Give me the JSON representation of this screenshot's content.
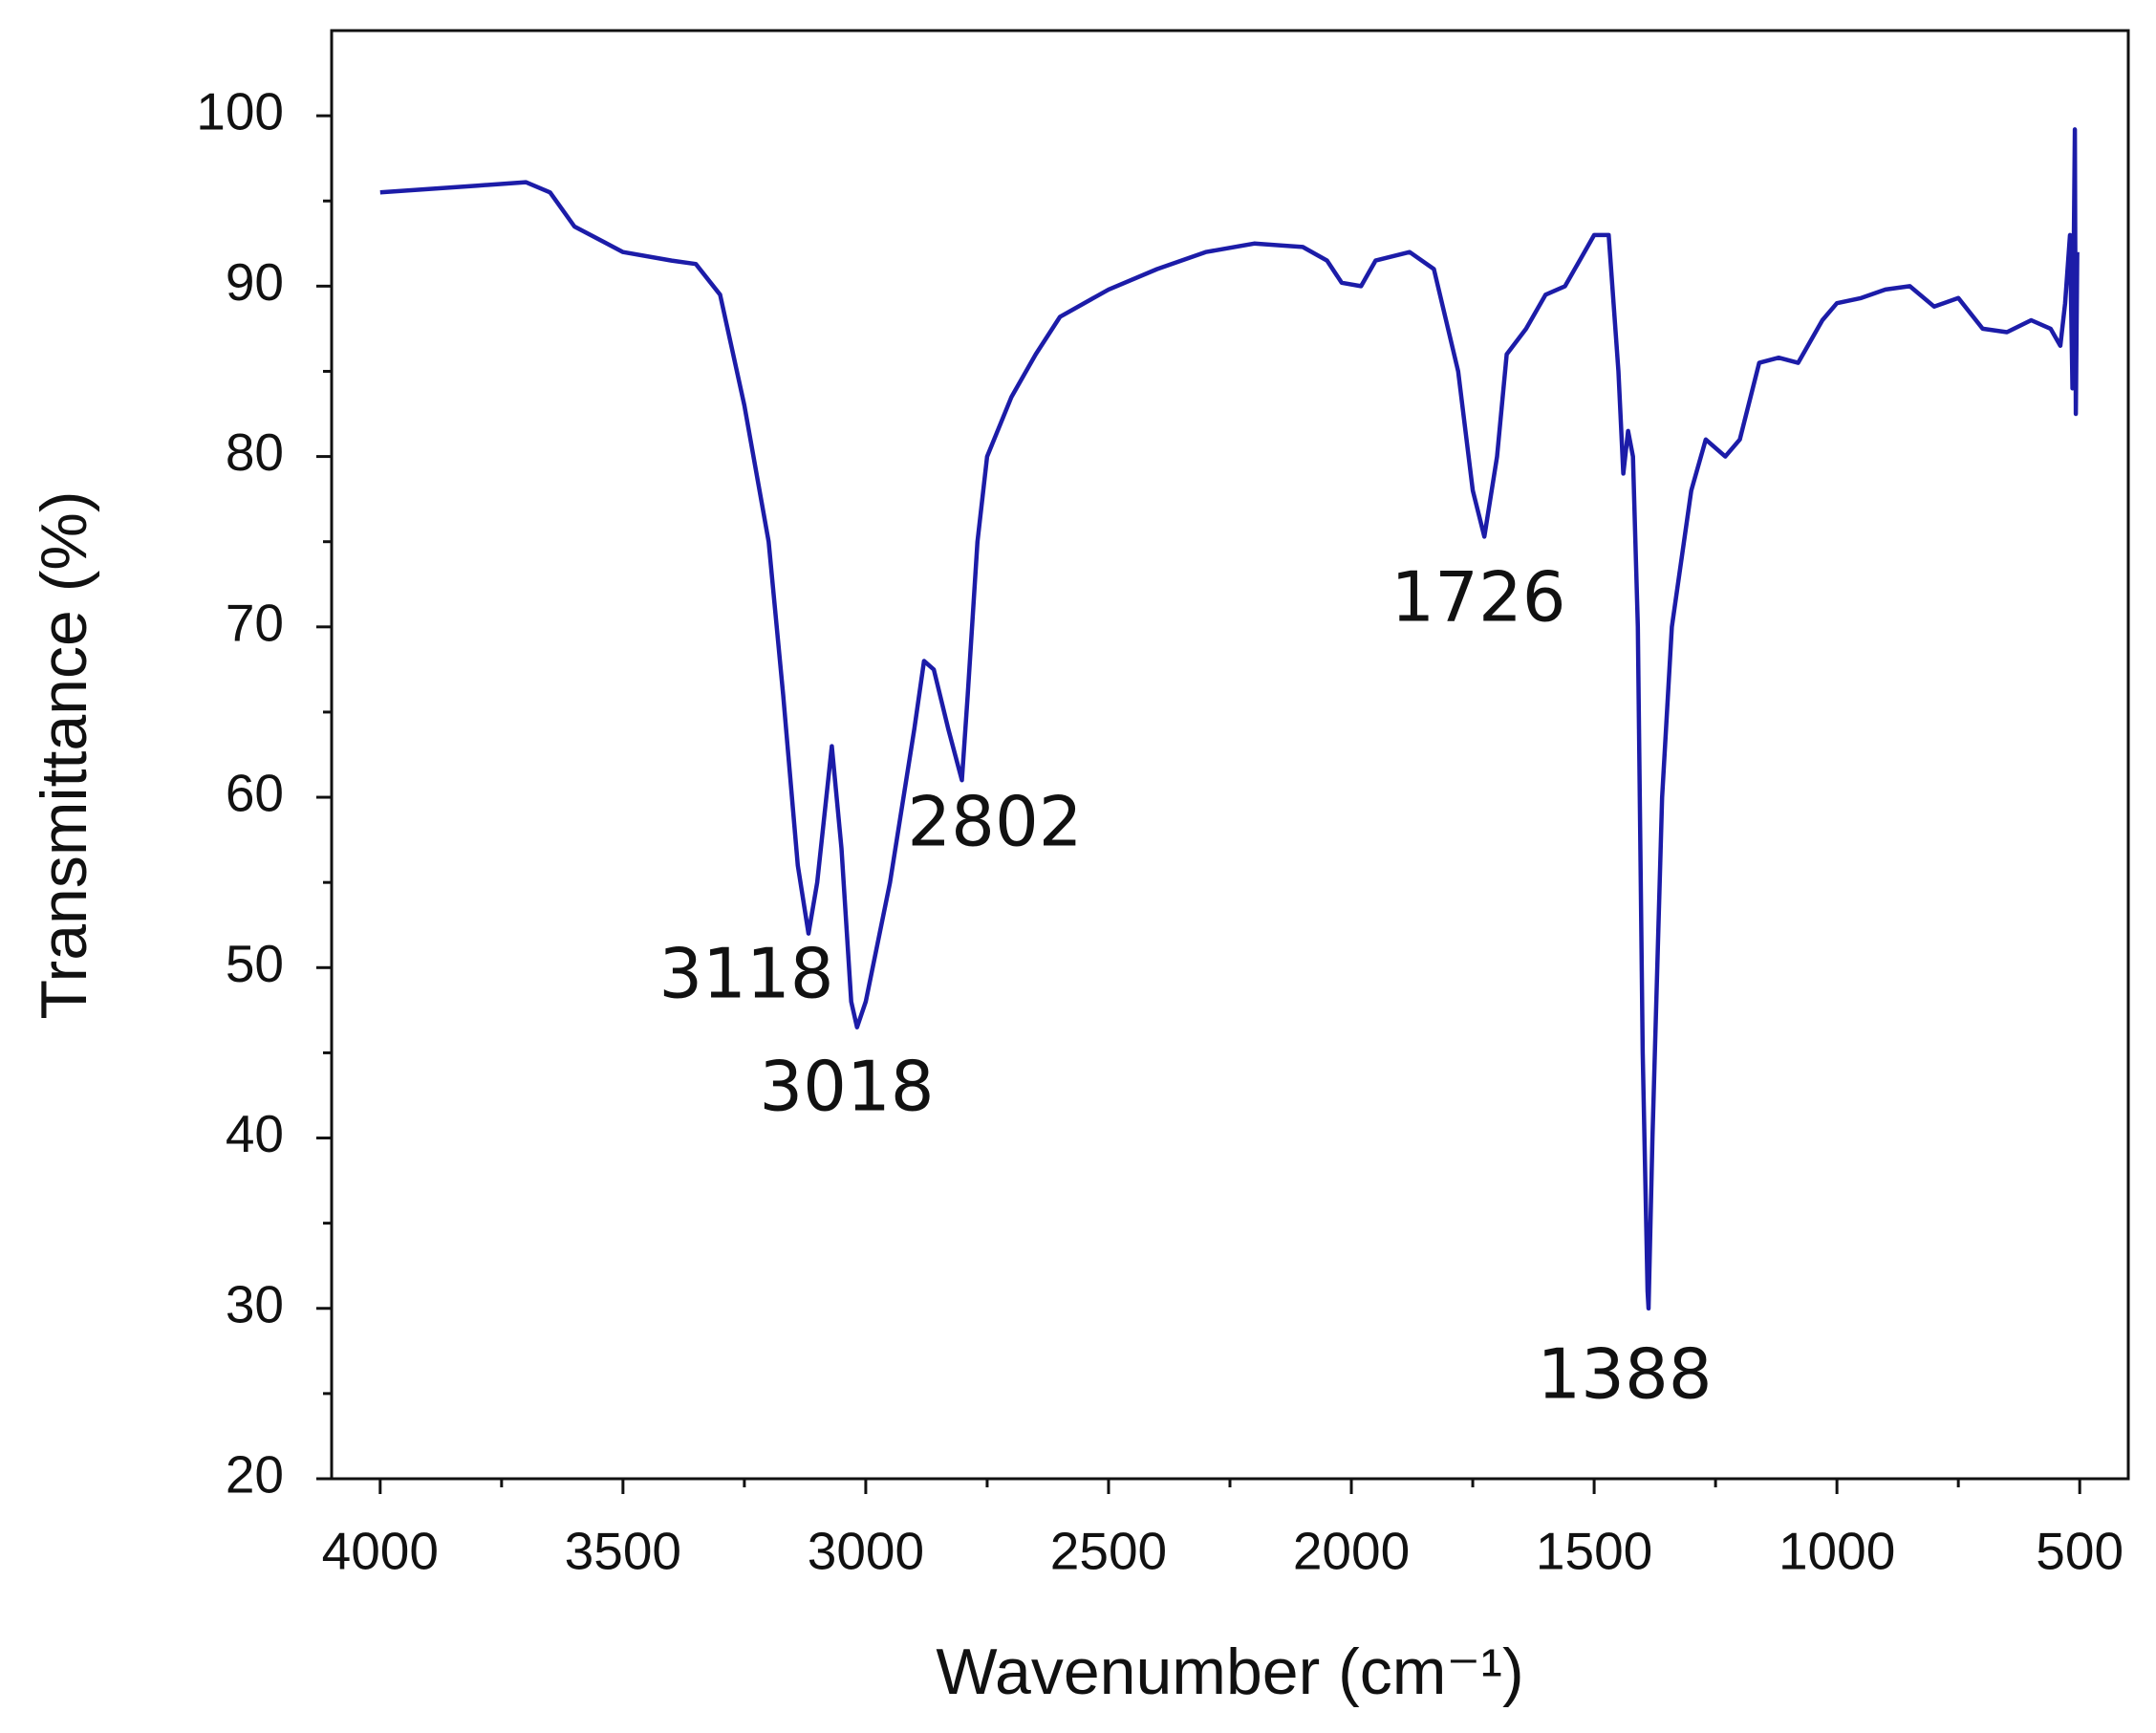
{
  "chart_data": {
    "type": "line",
    "xlabel": "Wavenumber (cm⁻¹)",
    "ylabel": "Transmittance (%)",
    "x": [
      4000,
      3900,
      3800,
      3700,
      3650,
      3600,
      3500,
      3400,
      3350,
      3300,
      3250,
      3200,
      3170,
      3140,
      3118,
      3100,
      3070,
      3050,
      3030,
      3018,
      3000,
      2950,
      2900,
      2880,
      2860,
      2830,
      2802,
      2790,
      2770,
      2750,
      2700,
      2650,
      2600,
      2500,
      2400,
      2300,
      2200,
      2100,
      2050,
      2020,
      1980,
      1950,
      1880,
      1830,
      1780,
      1750,
      1726,
      1700,
      1680,
      1640,
      1600,
      1560,
      1500,
      1470,
      1450,
      1440,
      1430,
      1420,
      1410,
      1400,
      1390,
      1388,
      1380,
      1360,
      1340,
      1300,
      1270,
      1230,
      1200,
      1160,
      1120,
      1080,
      1030,
      1000,
      950,
      900,
      850,
      800,
      750,
      700,
      650,
      600,
      560,
      540,
      530,
      520,
      515,
      510,
      508,
      505
    ],
    "series": [
      {
        "color": "#1c1ca8",
        "values": [
          95.5,
          95.7,
          95.9,
          96.1,
          95.5,
          93.5,
          92,
          91.5,
          91.3,
          89.5,
          83,
          75,
          66,
          56,
          52,
          55,
          63,
          57,
          48,
          46.5,
          48,
          55,
          64,
          68,
          67.5,
          64,
          61,
          66,
          75,
          80,
          83.5,
          86,
          88.2,
          89.8,
          91,
          92,
          92.5,
          92.3,
          91.5,
          90.2,
          90,
          91.5,
          92,
          91,
          85,
          78,
          75.3,
          80,
          86,
          87.5,
          89.5,
          90,
          93,
          93,
          85,
          79,
          81.5,
          80,
          70,
          45,
          31,
          30,
          40,
          60,
          70,
          78,
          81,
          80,
          81,
          85.5,
          85.8,
          85.5,
          88,
          89,
          89.3,
          89.8,
          90,
          88.8,
          89.3,
          87.5,
          87.3,
          88,
          87.5,
          86.5,
          89,
          93,
          84,
          99.2,
          82.5,
          92
        ]
      }
    ],
    "xlim": [
      4100,
      400
    ],
    "ylim": [
      20,
      105
    ],
    "xticks": [
      4000,
      3500,
      3000,
      2500,
      2000,
      1500,
      1000,
      500
    ],
    "yticks": [
      20,
      30,
      40,
      50,
      60,
      70,
      80,
      90,
      100
    ],
    "annotations": [
      "3118",
      "3018",
      "2802",
      "1726",
      "1388"
    ]
  }
}
